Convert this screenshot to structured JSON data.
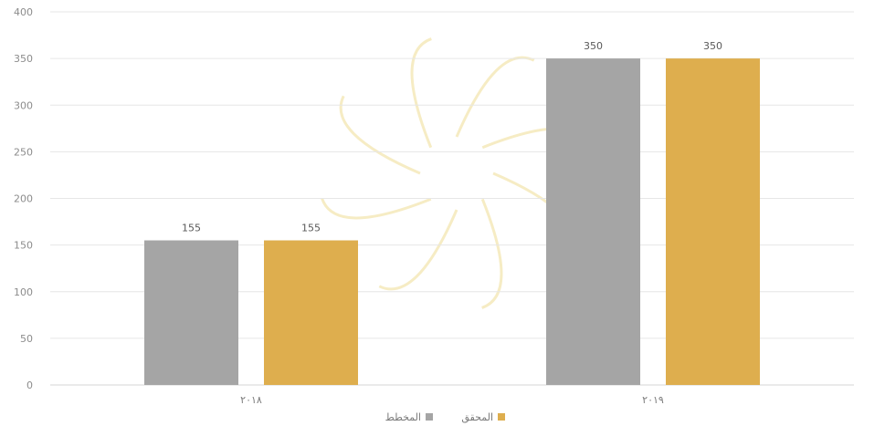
{
  "chart_data": {
    "type": "bar",
    "categories": [
      "٢٠١٨",
      "٢٠١٩"
    ],
    "series": [
      {
        "name": "المخطط",
        "color": "#a5a5a5",
        "values": [
          155,
          350
        ]
      },
      {
        "name": "المحقق",
        "color": "#deae4e",
        "values": [
          155,
          350
        ]
      }
    ],
    "data_labels": [
      [
        "155",
        "350"
      ],
      [
        "155",
        "350"
      ]
    ],
    "y_ticks": [
      "0",
      "50",
      "100",
      "150",
      "200",
      "250",
      "300",
      "350",
      "400"
    ],
    "ylim": [
      0,
      400
    ],
    "grid": true,
    "legend_position": "bottom"
  }
}
